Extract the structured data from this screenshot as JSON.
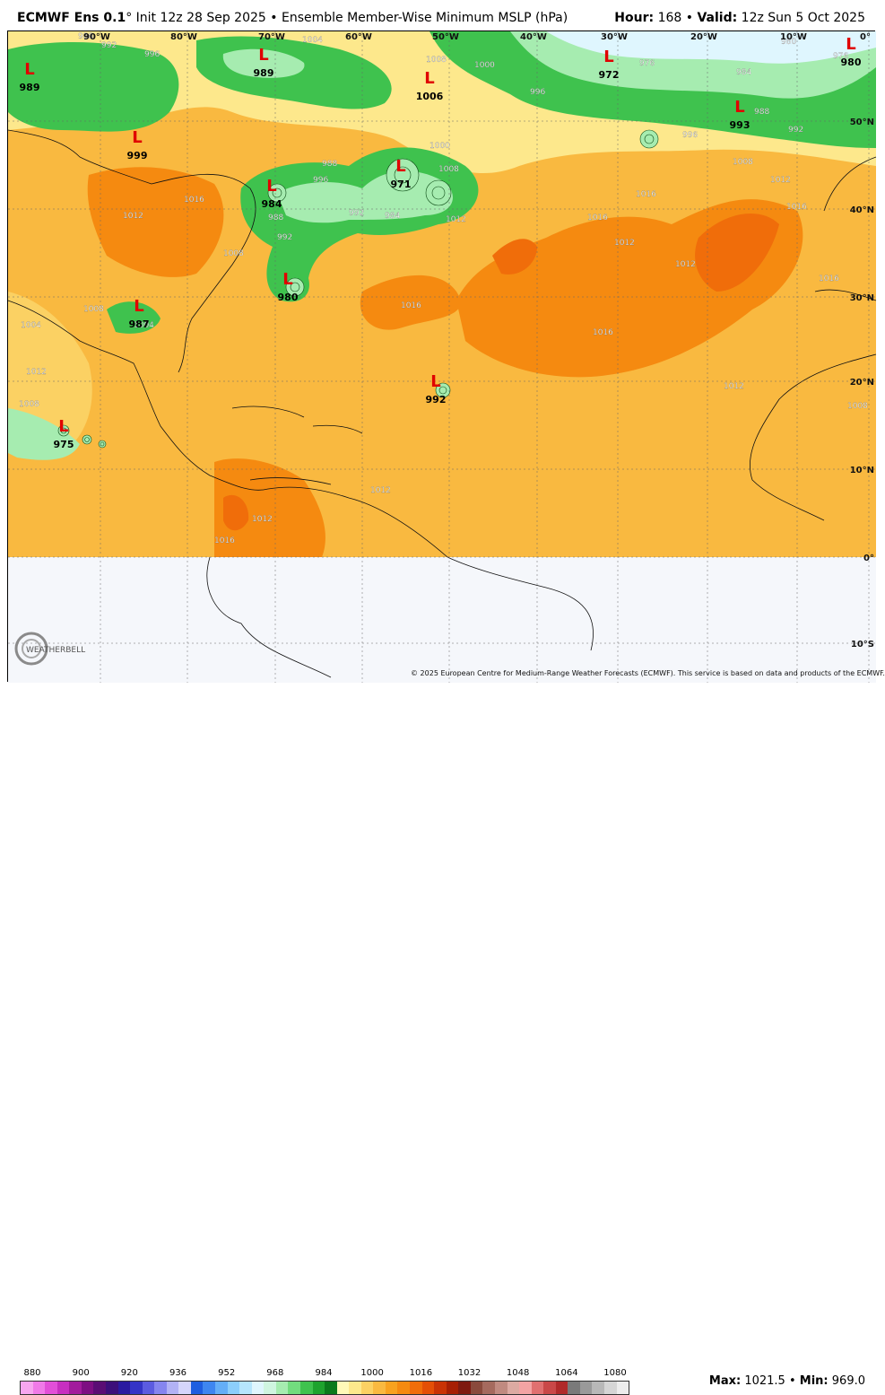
{
  "header": {
    "model": "ECMWF Ens 0.1",
    "degree": "°",
    "init": " Init 12z 28 Sep 2025",
    "bullet": " • ",
    "product": "Ensemble Member-Wise Minimum MSLP (hPa)",
    "hour_label": "Hour:",
    "hour_value": "168",
    "valid_label": "Valid:",
    "valid_value": "12z Sun 5 Oct 2025"
  },
  "footer": {
    "max_label": "Max:",
    "max_value": "1021.5",
    "min_label": "Min:",
    "min_value": "969.0",
    "copyright": "© 2025 European Centre for Medium-Range Weather Forecasts (ECMWF). This service is based on data and products of the ECMWF.",
    "logo_text": "WEATHERBELL"
  },
  "colorbar": {
    "ticks": [
      "880",
      "900",
      "920",
      "936",
      "952",
      "968",
      "984",
      "1000",
      "1016",
      "1032",
      "1048",
      "1064",
      "1080"
    ],
    "colors": [
      "#f7a6f0",
      "#f07ae8",
      "#e24fd8",
      "#c72fc0",
      "#a21b9c",
      "#7d0f82",
      "#5a0d74",
      "#3c0f7a",
      "#2a1aa0",
      "#3434c6",
      "#5b5be0",
      "#8585ef",
      "#b2b2f5",
      "#d5d5fb",
      "#1e5ee0",
      "#3e86f0",
      "#64aef7",
      "#8ccefb",
      "#b6e6fd",
      "#dff6fe",
      "#cff5e0",
      "#a6ecb0",
      "#72dc7e",
      "#3fc24e",
      "#1ea32e",
      "#0b7a1c",
      "#fff9b8",
      "#fde88c",
      "#fbd163",
      "#f9b940",
      "#f8a21f",
      "#f58a10",
      "#f06d0a",
      "#e44f06",
      "#c93305",
      "#a61f04",
      "#7e1a10",
      "#8a4a3c",
      "#a56a5e",
      "#c08a80",
      "#dcaaa2",
      "#f3a3a3",
      "#e07070",
      "#c94848",
      "#b02a2a",
      "#7a7a7a",
      "#9a9a9a",
      "#b8b8b8",
      "#d5d5d5",
      "#ececec"
    ]
  },
  "lon_labels": [
    "90°W",
    "80°W",
    "70°W",
    "60°W",
    "50°W",
    "40°W",
    "30°W",
    "20°W",
    "10°W",
    "0°"
  ],
  "lat_labels": [
    "50°N",
    "40°N",
    "30°N",
    "20°N",
    "10°N",
    "0°",
    "10°S"
  ],
  "lows": [
    {
      "value": "989"
    },
    {
      "value": "999"
    },
    {
      "value": "989"
    },
    {
      "value": "1006"
    },
    {
      "value": "972"
    },
    {
      "value": "980"
    },
    {
      "value": "993"
    },
    {
      "value": "984"
    },
    {
      "value": "971"
    },
    {
      "value": "980"
    },
    {
      "value": "987"
    },
    {
      "value": "992"
    },
    {
      "value": "975"
    }
  ],
  "isobar_labels": [
    "988",
    "992",
    "996",
    "1004",
    "1008",
    "1000",
    "996",
    "976",
    "980",
    "984",
    "988",
    "992",
    "996",
    "976",
    "1008",
    "1012",
    "1016",
    "1016",
    "1012",
    "1012",
    "1016",
    "1016",
    "1016",
    "1012",
    "1008",
    "1004",
    "1012",
    "1008",
    "1016",
    "1012",
    "1004",
    "1012",
    "1008",
    "1008",
    "1016",
    "1012",
    "1016",
    "988",
    "992",
    "996",
    "984",
    "988",
    "992",
    "1000",
    "1008",
    "1012"
  ],
  "map_colors": {
    "ocean_orange": "#f9b940",
    "deep_orange": "#f58a10",
    "high_core": "#f06d0a",
    "light_orange": "#fbd163",
    "pale_yellow": "#fde88c",
    "green_light": "#a6ecb0",
    "green_mid": "#3fc24e",
    "green_dark": "#1ea32e",
    "cyan_pale": "#dff6fe",
    "south_land": "#f5f7fb",
    "low_marker": "#e00000"
  }
}
